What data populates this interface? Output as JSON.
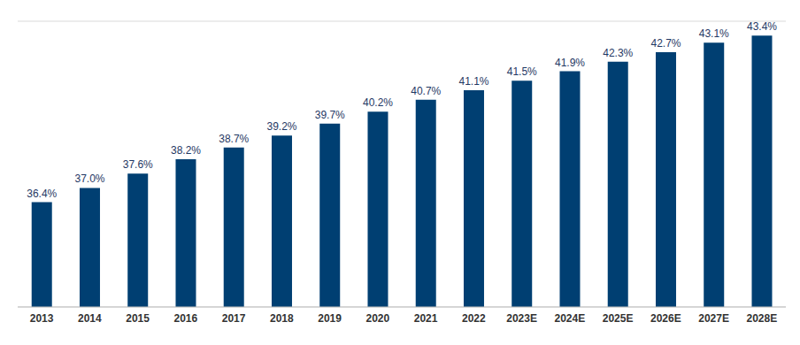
{
  "chart_data": {
    "type": "bar",
    "categories": [
      "2013",
      "2014",
      "2015",
      "2016",
      "2017",
      "2018",
      "2019",
      "2020",
      "2021",
      "2022",
      "2023E",
      "2024E",
      "2025E",
      "2026E",
      "2027E",
      "2028E"
    ],
    "values": [
      36.4,
      37.0,
      37.6,
      38.2,
      38.7,
      39.2,
      39.7,
      40.2,
      40.7,
      41.1,
      41.5,
      41.9,
      42.3,
      42.7,
      43.1,
      43.4
    ],
    "value_labels": [
      "36.4%",
      "37.0%",
      "37.6%",
      "38.2%",
      "38.7%",
      "39.2%",
      "39.7%",
      "40.2%",
      "40.7%",
      "41.1%",
      "41.5%",
      "41.9%",
      "42.3%",
      "42.7%",
      "43.1%",
      "43.4%"
    ],
    "color": "#003f72",
    "ylim": [
      32,
      44
    ],
    "yticks": [
      32,
      34,
      36,
      38,
      40,
      42,
      44
    ],
    "grid": true,
    "data_labels": true,
    "tick_labels": "x"
  }
}
